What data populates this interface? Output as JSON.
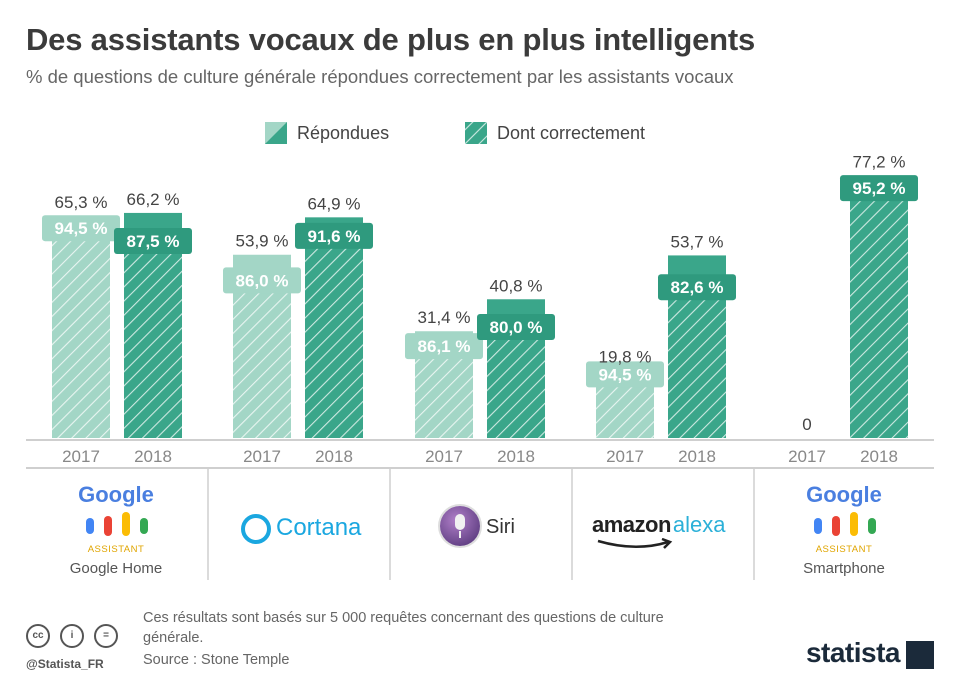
{
  "title": "Des assistants vocaux de plus en plus intelligents",
  "subtitle": "% de questions de culture générale répondues correctement par les assistants vocaux",
  "colors": {
    "light": "#a3d6c6",
    "dark": "#3aa68a",
    "label_light": "#a3d6c6",
    "label_dark": "#2f9a7e"
  },
  "chart_data": {
    "type": "bar",
    "title": "Des assistants vocaux de plus en plus intelligents",
    "subtitle": "% de questions de culture générale répondues correctement par les assistants vocaux",
    "legend": [
      "Répondues",
      "Dont correctement"
    ],
    "legend_position": "top",
    "ylim": [
      0,
      100
    ],
    "grid": false,
    "groups": [
      {
        "name": "Google Home",
        "bars": [
          {
            "year": "2017",
            "answered": 65.3,
            "answered_label": "65,3 %",
            "correct": 94.5,
            "correct_label": "94,5 %"
          },
          {
            "year": "2018",
            "answered": 66.2,
            "answered_label": "66,2 %",
            "correct": 87.5,
            "correct_label": "87,5 %"
          }
        ]
      },
      {
        "name": "Cortana",
        "bars": [
          {
            "year": "2017",
            "answered": 53.9,
            "answered_label": "53,9 %",
            "correct": 86.0,
            "correct_label": "86,0 %"
          },
          {
            "year": "2018",
            "answered": 64.9,
            "answered_label": "64,9 %",
            "correct": 91.6,
            "correct_label": "91,6 %"
          }
        ]
      },
      {
        "name": "Siri",
        "bars": [
          {
            "year": "2017",
            "answered": 31.4,
            "answered_label": "31,4 %",
            "correct": 86.1,
            "correct_label": "86,1 %"
          },
          {
            "year": "2018",
            "answered": 40.8,
            "answered_label": "40,8 %",
            "correct": 80.0,
            "correct_label": "80,0 %"
          }
        ]
      },
      {
        "name": "Amazon Alexa",
        "bars": [
          {
            "year": "2017",
            "answered": 19.8,
            "answered_label": "19,8 %",
            "correct": 94.5,
            "correct_label": "94,5 %"
          },
          {
            "year": "2018",
            "answered": 53.7,
            "answered_label": "53,7 %",
            "correct": 82.6,
            "correct_label": "82,6 %"
          }
        ]
      },
      {
        "name": "Smartphone",
        "bars": [
          {
            "year": "2017",
            "answered": 0,
            "answered_label": "0",
            "correct": null,
            "correct_label": ""
          },
          {
            "year": "2018",
            "answered": 77.2,
            "answered_label": "77,2 %",
            "correct": 95.2,
            "correct_label": "95,2 %"
          }
        ]
      }
    ]
  },
  "logos": {
    "google_word": "Google",
    "assistant_word": "ASSISTANT",
    "google_home_caption": "Google Home",
    "cortana_word": "Cortana",
    "siri_word": "Siri",
    "amazon_word": "amazon",
    "alexa_word": "alexa",
    "smartphone_caption": "Smartphone"
  },
  "footer": {
    "note": "Ces résultats sont basés sur 5 000 requêtes concernant des questions de culture générale.",
    "source": "Source : Stone Temple",
    "handle": "@Statista_FR",
    "brand": "statista",
    "cc_icons": [
      "cc-icon",
      "by-icon",
      "nd-icon"
    ]
  }
}
